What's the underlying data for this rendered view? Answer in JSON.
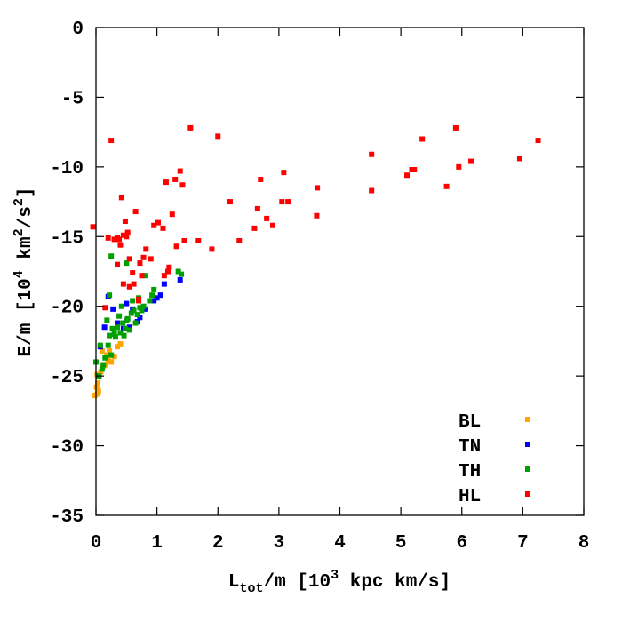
{
  "chart_data": {
    "type": "scatter",
    "xlabel": {
      "main": "L",
      "sub": "tot",
      "rest": "/m [10",
      "sup": "3",
      "tail": " kpc km/s]"
    },
    "ylabel": {
      "main": "E/m [10",
      "sup1": "4",
      "mid": " km",
      "sup2": "2",
      "mid2": "/s",
      "sup3": "2",
      "tail": "]"
    },
    "xlim": [
      0,
      8
    ],
    "ylim": [
      -35,
      0
    ],
    "x_ticks": [
      0,
      1,
      2,
      3,
      4,
      5,
      6,
      7,
      8
    ],
    "y_ticks": [
      0,
      -5,
      -10,
      -15,
      -20,
      -25,
      -30,
      -35
    ],
    "x_tick_labels": [
      "0",
      "1",
      "2",
      "3",
      "4",
      "5",
      "6",
      "7",
      "8"
    ],
    "y_tick_labels": [
      "0",
      "-5",
      "-10",
      "-15",
      "-20",
      "-25",
      "-30",
      "-35"
    ],
    "grid": false,
    "legend_position": "bottom-right",
    "series": [
      {
        "name": "BL",
        "color": "#ffa500",
        "points": [
          [
            -0.02,
            -26.4
          ],
          [
            0.02,
            -26.3
          ],
          [
            0.04,
            -26.1
          ],
          [
            0.01,
            -25.8
          ],
          [
            0.03,
            -25.5
          ],
          [
            0.05,
            -25.0
          ],
          [
            0.02,
            -24.9
          ],
          [
            0.08,
            -24.7
          ],
          [
            0.12,
            -24.3
          ],
          [
            0.15,
            -24.2
          ],
          [
            0.2,
            -23.9
          ],
          [
            0.25,
            -24.0
          ],
          [
            0.18,
            -23.5
          ],
          [
            0.22,
            -23.2
          ],
          [
            0.3,
            -23.6
          ],
          [
            0.35,
            -22.9
          ],
          [
            0.4,
            -22.7
          ],
          [
            0.1,
            -23.2
          ]
        ]
      },
      {
        "name": "TN",
        "color": "#0000ff",
        "points": [
          [
            0.07,
            -22.9
          ],
          [
            0.14,
            -21.5
          ],
          [
            0.2,
            -19.3
          ],
          [
            0.28,
            -20.2
          ],
          [
            0.35,
            -21.2
          ],
          [
            0.45,
            -21.6
          ],
          [
            0.55,
            -21.5
          ],
          [
            0.6,
            -20.2
          ],
          [
            0.68,
            -21.1
          ],
          [
            0.72,
            -20.8
          ],
          [
            0.8,
            -20.2
          ],
          [
            0.95,
            -19.6
          ],
          [
            1.0,
            -19.4
          ],
          [
            1.06,
            -19.2
          ],
          [
            1.12,
            -18.4
          ],
          [
            1.38,
            -18.1
          ],
          [
            0.5,
            -19.8
          ]
        ]
      },
      {
        "name": "TH",
        "color": "#00a000",
        "points": [
          [
            0.0,
            -24.0
          ],
          [
            0.05,
            -25.0
          ],
          [
            0.07,
            -22.8
          ],
          [
            0.1,
            -24.5
          ],
          [
            0.12,
            -24.2
          ],
          [
            0.15,
            -23.7
          ],
          [
            0.2,
            -22.8
          ],
          [
            0.22,
            -22.1
          ],
          [
            0.25,
            -23.5
          ],
          [
            0.27,
            -21.6
          ],
          [
            0.3,
            -21.9
          ],
          [
            0.32,
            -22.2
          ],
          [
            0.35,
            -21.5
          ],
          [
            0.38,
            -20.7
          ],
          [
            0.4,
            -21.9
          ],
          [
            0.42,
            -20.0
          ],
          [
            0.44,
            -21.2
          ],
          [
            0.46,
            -22.1
          ],
          [
            0.48,
            -21.6
          ],
          [
            0.5,
            -21.0
          ],
          [
            0.52,
            -20.9
          ],
          [
            0.55,
            -21.7
          ],
          [
            0.58,
            -20.5
          ],
          [
            0.6,
            -19.6
          ],
          [
            0.62,
            -20.3
          ],
          [
            0.65,
            -21.2
          ],
          [
            0.68,
            -20.6
          ],
          [
            0.7,
            -19.4
          ],
          [
            0.72,
            -20.1
          ],
          [
            0.75,
            -20.3
          ],
          [
            0.78,
            -20.0
          ],
          [
            0.8,
            -17.8
          ],
          [
            0.88,
            -19.6
          ],
          [
            0.92,
            -19.2
          ],
          [
            0.95,
            -18.8
          ],
          [
            1.35,
            -17.5
          ],
          [
            1.4,
            -17.7
          ],
          [
            0.25,
            -16.4
          ],
          [
            0.5,
            -16.9
          ],
          [
            0.3,
            -22.0
          ],
          [
            0.18,
            -21.0
          ],
          [
            0.22,
            -19.2
          ]
        ]
      },
      {
        "name": "HL",
        "color": "#ff0000",
        "points": [
          [
            -0.05,
            -14.3
          ],
          [
            0.2,
            -15.1
          ],
          [
            0.25,
            -8.1
          ],
          [
            0.3,
            -15.2
          ],
          [
            0.35,
            -15.1
          ],
          [
            0.35,
            -17.0
          ],
          [
            0.38,
            -15.2
          ],
          [
            0.4,
            -15.6
          ],
          [
            0.42,
            -12.2
          ],
          [
            0.45,
            -14.9
          ],
          [
            0.45,
            -18.4
          ],
          [
            0.48,
            -13.9
          ],
          [
            0.5,
            -15.0
          ],
          [
            0.52,
            -14.7
          ],
          [
            0.55,
            -16.6
          ],
          [
            0.55,
            -18.6
          ],
          [
            0.6,
            -17.6
          ],
          [
            0.62,
            -18.4
          ],
          [
            0.65,
            -13.2
          ],
          [
            0.7,
            -19.5
          ],
          [
            0.7,
            -19.6
          ],
          [
            0.72,
            -16.9
          ],
          [
            0.75,
            -17.8
          ],
          [
            0.78,
            -16.5
          ],
          [
            0.82,
            -15.9
          ],
          [
            0.9,
            -16.6
          ],
          [
            0.95,
            -14.2
          ],
          [
            1.02,
            -14.0
          ],
          [
            1.1,
            -14.4
          ],
          [
            1.12,
            -17.8
          ],
          [
            1.15,
            -11.1
          ],
          [
            1.18,
            -17.5
          ],
          [
            1.2,
            -17.2
          ],
          [
            1.25,
            -13.4
          ],
          [
            1.3,
            -10.9
          ],
          [
            1.32,
            -15.7
          ],
          [
            1.38,
            -10.3
          ],
          [
            1.42,
            -11.3
          ],
          [
            1.45,
            -15.3
          ],
          [
            1.55,
            -7.2
          ],
          [
            1.68,
            -15.3
          ],
          [
            1.9,
            -15.9
          ],
          [
            2.0,
            -7.8
          ],
          [
            2.2,
            -12.5
          ],
          [
            2.35,
            -15.3
          ],
          [
            2.6,
            -14.4
          ],
          [
            2.65,
            -13.0
          ],
          [
            2.7,
            -10.9
          ],
          [
            2.8,
            -13.7
          ],
          [
            2.9,
            -14.2
          ],
          [
            3.05,
            -12.5
          ],
          [
            3.08,
            -10.4
          ],
          [
            3.15,
            -12.5
          ],
          [
            3.62,
            -13.5
          ],
          [
            3.63,
            -11.5
          ],
          [
            4.52,
            -9.1
          ],
          [
            4.52,
            -11.7
          ],
          [
            5.1,
            -10.6
          ],
          [
            5.18,
            -10.2
          ],
          [
            5.22,
            -10.2
          ],
          [
            5.35,
            -8.0
          ],
          [
            5.75,
            -11.4
          ],
          [
            5.9,
            -7.2
          ],
          [
            5.95,
            -10.0
          ],
          [
            6.15,
            -9.6
          ],
          [
            6.95,
            -9.4
          ],
          [
            7.25,
            -8.1
          ],
          [
            0.15,
            -20.1
          ]
        ]
      }
    ]
  }
}
